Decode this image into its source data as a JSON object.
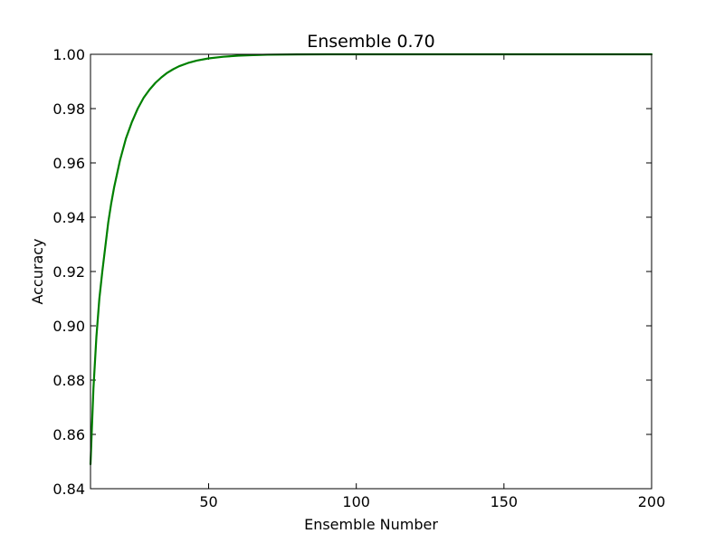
{
  "chart_data": {
    "type": "line",
    "title": "Ensemble 0.70",
    "xlabel": "Ensemble Number",
    "ylabel": "Accuracy",
    "xlim": [
      10,
      200
    ],
    "ylim": [
      0.84,
      1.0
    ],
    "xticks": [
      50,
      100,
      150,
      200
    ],
    "yticks": [
      0.84,
      0.86,
      0.88,
      0.9,
      0.92,
      0.94,
      0.96,
      0.98,
      1.0
    ],
    "xtick_labels": [
      "50",
      "100",
      "150",
      "200"
    ],
    "ytick_labels": [
      "0.84",
      "0.86",
      "0.88",
      "0.90",
      "0.92",
      "0.94",
      "0.96",
      "0.98",
      "1.00"
    ],
    "grid": false,
    "series": [
      {
        "color": "#008000",
        "x": [
          10,
          11,
          12,
          13,
          14,
          15,
          16,
          17,
          18,
          19,
          20,
          22,
          24,
          26,
          28,
          30,
          32,
          34,
          36,
          38,
          40,
          43,
          46,
          50,
          55,
          60,
          65,
          70,
          80,
          90,
          100,
          120,
          150,
          200
        ],
        "y": [
          0.849,
          0.877,
          0.896,
          0.91,
          0.92,
          0.929,
          0.938,
          0.945,
          0.951,
          0.956,
          0.961,
          0.969,
          0.975,
          0.98,
          0.984,
          0.987,
          0.9895,
          0.9915,
          0.9932,
          0.9945,
          0.9956,
          0.9968,
          0.9977,
          0.9985,
          0.9991,
          0.9995,
          0.9997,
          0.99985,
          0.99995,
          0.99999,
          1.0,
          1.0,
          1.0,
          1.0
        ]
      }
    ]
  }
}
